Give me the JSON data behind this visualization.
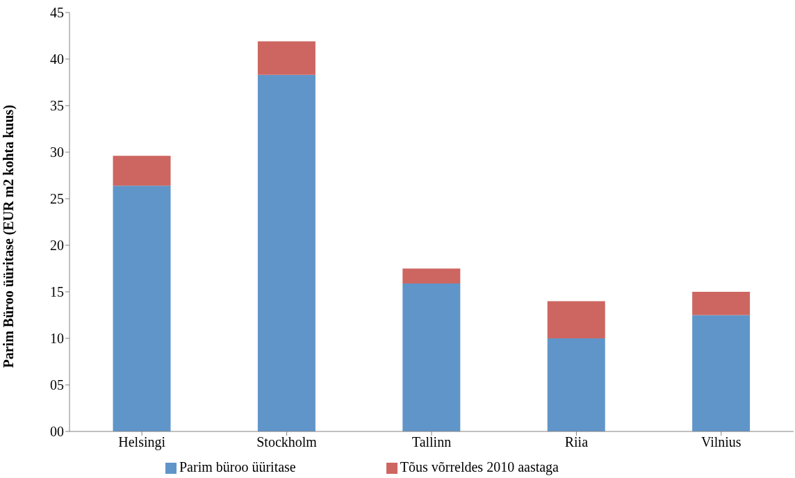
{
  "chart_data": {
    "type": "bar",
    "stacked": true,
    "ylabel": "Parim Büroo üüritase (EUR m2 kohta kuus)",
    "categories": [
      "Helsingi",
      "Stockholm",
      "Tallinn",
      "Riia",
      "Vilnius"
    ],
    "series": [
      {
        "name": "Parim büroo üüritase",
        "color": "#6095c9",
        "values": [
          26.4,
          38.3,
          15.9,
          10,
          12.5
        ]
      },
      {
        "name": "Tõus võrreldes 2010 aastaga",
        "color": "#cd6660",
        "values": [
          3.2,
          3.6,
          1.6,
          4,
          2.5
        ]
      }
    ],
    "ylim": [
      0,
      45
    ],
    "yticks": [
      {
        "value": 0,
        "label": "00"
      },
      {
        "value": 5,
        "label": "05"
      },
      10,
      15,
      20,
      25,
      30,
      35,
      40,
      45
    ],
    "grid": false,
    "legend": "bottom"
  }
}
